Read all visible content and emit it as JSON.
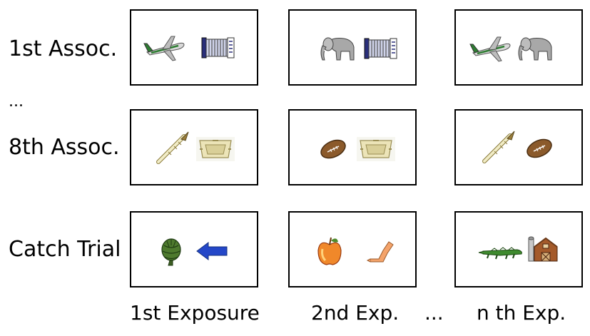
{
  "rows": [
    {
      "label": "1st Assoc."
    },
    {
      "label": "8th Assoc."
    },
    {
      "label": "Catch Trial"
    }
  ],
  "row_ellipsis": "...",
  "columns": [
    {
      "label": "1st Exposure"
    },
    {
      "label": "2nd Exp."
    },
    {
      "label": "n th Exp."
    }
  ],
  "column_ellipsis": "...",
  "panels": [
    [
      "airplane-icon",
      "accordion-icon"
    ],
    [
      "elephant-icon",
      "accordion-icon"
    ],
    [
      "airplane-icon",
      "elephant-icon"
    ],
    [
      "asparagus-icon",
      "ashtray-icon"
    ],
    [
      "football-icon",
      "ashtray-icon"
    ],
    [
      "asparagus-icon",
      "football-icon"
    ],
    [
      "artichoke-icon",
      "arrow-icon"
    ],
    [
      "apple-icon",
      "arm-icon"
    ],
    [
      "alligator-icon",
      "barn-icon"
    ]
  ],
  "colors": {
    "border": "#000000",
    "arrow": "#2447c8",
    "airplane_stripe": "#2e7d32"
  }
}
